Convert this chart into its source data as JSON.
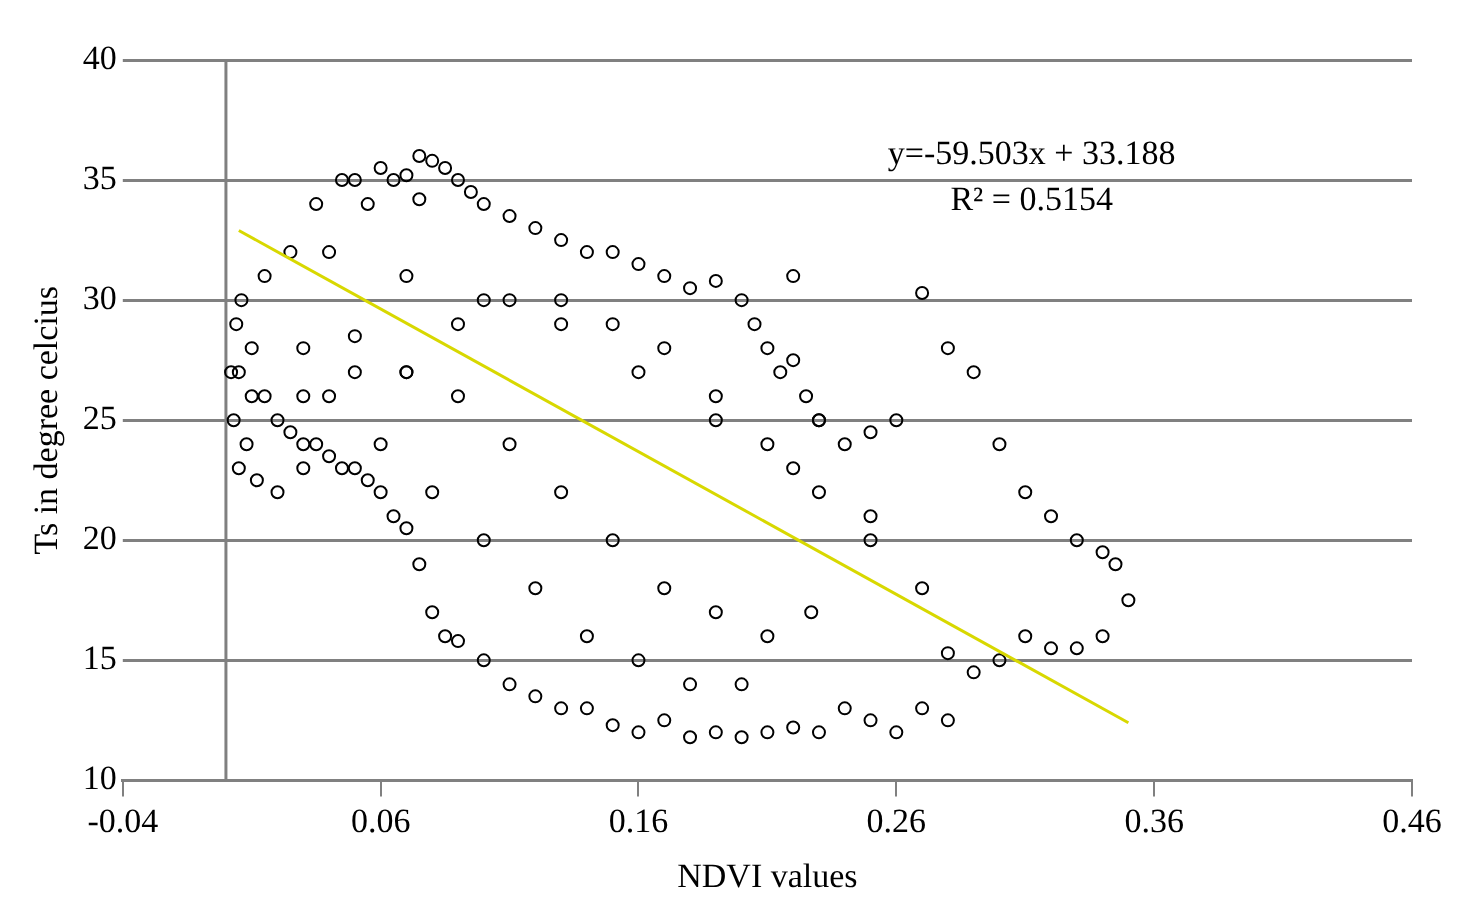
{
  "chart_data": {
    "type": "scatter",
    "xlabel": "NDVI values",
    "ylabel": "Ts in degree celcius",
    "xlim": [
      -0.04,
      0.46
    ],
    "xticks": [
      -0.04,
      0.06,
      0.16,
      0.26,
      0.36,
      0.46
    ],
    "ylim": [
      10,
      40
    ],
    "yticks": [
      10,
      15,
      20,
      25,
      30,
      35,
      40
    ],
    "grid": "y",
    "legend": false,
    "ref_lines": [
      {
        "axis": "x",
        "value": 0,
        "color": "#808080"
      }
    ],
    "annotations": [
      "y=-59.503x + 33.188",
      "R² = 0.5154"
    ],
    "series": [
      {
        "color": "#000000",
        "marker": "circle",
        "x": [
          0.002,
          0.004,
          0.003,
          0.006,
          0.005,
          0.008,
          0.01,
          0.012,
          0.015,
          0.02,
          0.025,
          0.03,
          0.035,
          0.04,
          0.045,
          0.05,
          0.055,
          0.06,
          0.065,
          0.07,
          0.075,
          0.08,
          0.085,
          0.09,
          0.095,
          0.1,
          0.11,
          0.12,
          0.13,
          0.14,
          0.15,
          0.16,
          0.17,
          0.18,
          0.19,
          0.2,
          0.205,
          0.21,
          0.215,
          0.22,
          0.225,
          0.23,
          0.24,
          0.25,
          0.26,
          0.27,
          0.28,
          0.29,
          0.3,
          0.31,
          0.32,
          0.33,
          0.34,
          0.345,
          0.35,
          0.34,
          0.33,
          0.32,
          0.31,
          0.3,
          0.29,
          0.28,
          0.27,
          0.26,
          0.25,
          0.24,
          0.23,
          0.22,
          0.21,
          0.2,
          0.19,
          0.18,
          0.17,
          0.16,
          0.15,
          0.14,
          0.13,
          0.12,
          0.11,
          0.1,
          0.09,
          0.085,
          0.08,
          0.075,
          0.07,
          0.065,
          0.06,
          0.055,
          0.05,
          0.045,
          0.04,
          0.035,
          0.03,
          0.025,
          0.02,
          0.015,
          0.01,
          0.005,
          0.03,
          0.05,
          0.07,
          0.09,
          0.11,
          0.13,
          0.15,
          0.17,
          0.19,
          0.21,
          0.23,
          0.25,
          0.03,
          0.05,
          0.07,
          0.09,
          0.11,
          0.13,
          0.15,
          0.17,
          0.19,
          0.21,
          0.23,
          0.04,
          0.06,
          0.08,
          0.1,
          0.12,
          0.14,
          0.16,
          0.18,
          0.2,
          0.22,
          0.07,
          0.1,
          0.13,
          0.16,
          0.19,
          0.22,
          0.25,
          0.28,
          0.075,
          0.227,
          0.27
        ],
        "values": [
          27,
          29,
          25,
          30,
          23,
          24,
          28,
          22.5,
          31,
          22,
          32,
          23,
          34,
          32,
          35,
          35,
          34,
          35.5,
          35,
          35.2,
          36,
          35.8,
          35.5,
          35,
          34.5,
          34,
          33.5,
          33,
          32.5,
          32,
          32,
          31.5,
          31,
          30.5,
          30.8,
          30,
          29,
          28,
          27,
          27.5,
          26,
          25,
          24,
          24.5,
          25,
          30.3,
          28,
          27,
          24,
          22,
          21,
          20,
          19.5,
          19,
          17.5,
          16,
          15.5,
          15.5,
          16,
          15,
          14.5,
          12.5,
          13,
          12,
          12.5,
          13,
          12,
          12.2,
          12,
          11.8,
          12,
          11.8,
          12.5,
          12,
          12.3,
          13,
          13,
          13.5,
          14,
          15,
          15.8,
          16,
          17,
          19,
          20.5,
          21,
          22,
          22.5,
          23,
          23,
          23.5,
          24,
          24,
          24.5,
          25,
          26,
          26,
          27,
          28,
          28.5,
          27,
          29,
          30,
          30,
          29,
          28,
          26,
          24,
          22,
          21,
          26,
          27,
          27,
          26,
          24,
          22,
          20,
          18,
          17,
          16,
          25,
          26,
          24,
          22,
          20,
          18,
          16,
          15,
          14,
          14,
          31,
          31,
          30,
          29,
          27,
          25,
          23,
          20,
          15.3,
          34.2,
          17,
          18
        ]
      },
      {
        "type": "line",
        "color": "#d8d800",
        "marker": "none",
        "x": [
          0.005,
          0.35
        ],
        "values": [
          32.9,
          12.4
        ]
      }
    ]
  }
}
